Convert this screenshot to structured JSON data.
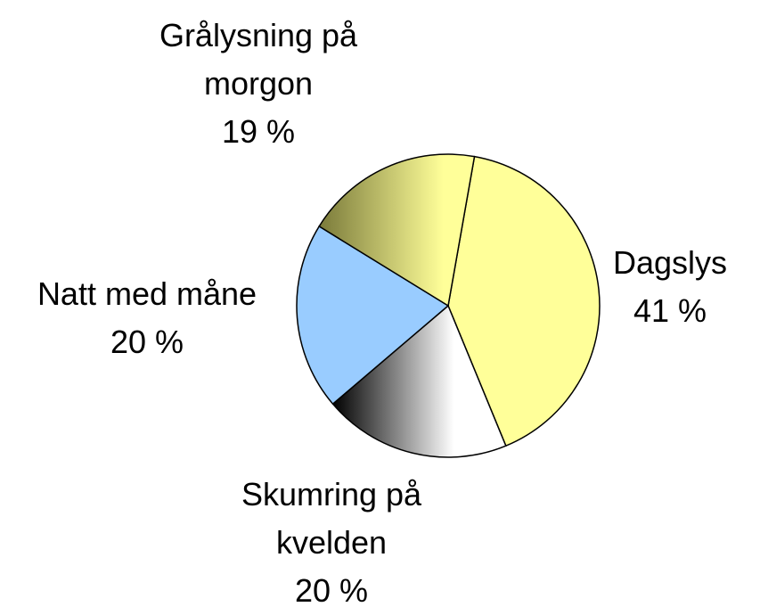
{
  "chart_data": {
    "type": "pie",
    "categories": [
      "Dagslys",
      "Skumring på kvelden",
      "Natt med måne",
      "Grålysning på morgon"
    ],
    "values": [
      41,
      20,
      20,
      19
    ],
    "value_labels": [
      "41 %",
      "20 %",
      "20 %",
      "19 %"
    ],
    "colors": [
      "#ffff99",
      "#ffffff",
      "#99ccff",
      "#ffff99"
    ]
  }
}
